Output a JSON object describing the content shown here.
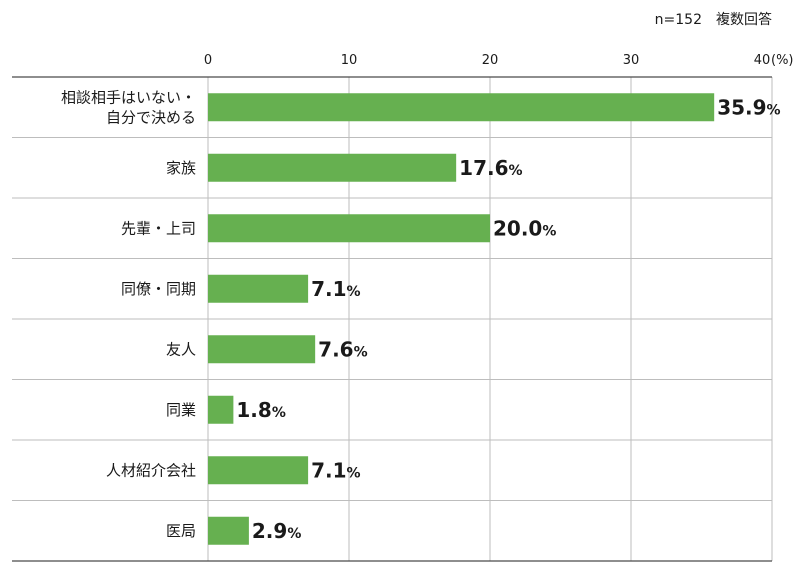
{
  "note": "n=152　複数回答",
  "chart_data": {
    "type": "bar",
    "orientation": "horizontal",
    "categories": [
      [
        "相談相手はいない・",
        "自分で決める"
      ],
      [
        "家族"
      ],
      [
        "先輩・上司"
      ],
      [
        "同僚・同期"
      ],
      [
        "友人"
      ],
      [
        "同業"
      ],
      [
        "人材紹介会社"
      ],
      [
        "医局"
      ]
    ],
    "values": [
      35.9,
      17.6,
      20.0,
      7.1,
      7.6,
      1.8,
      7.1,
      2.9
    ],
    "value_labels": [
      "35.9",
      "17.6",
      "20.0",
      "7.1",
      "7.6",
      "1.8",
      "7.1",
      "2.9"
    ],
    "value_suffix": "%",
    "xlim": [
      0,
      40
    ],
    "xticks": [
      "0",
      "10",
      "20",
      "30",
      "40"
    ],
    "xunit": "(%)",
    "grid": true,
    "bar_color": "#66b050"
  }
}
